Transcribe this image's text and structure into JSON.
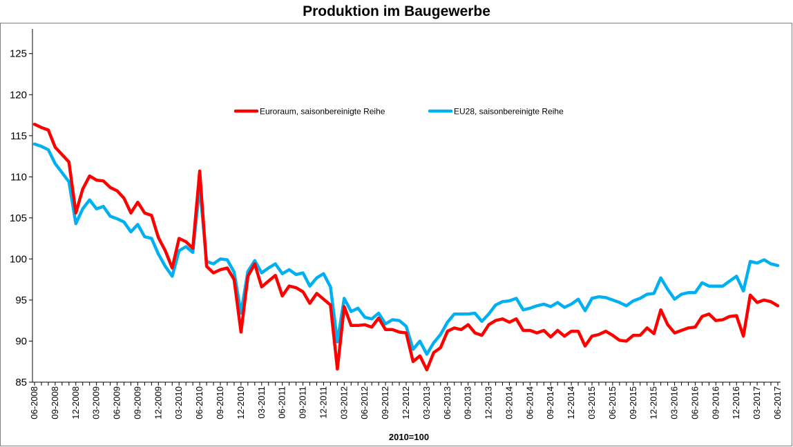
{
  "chart_data": {
    "type": "line",
    "title": "Produktion im Baugewerbe",
    "xlabel": "2010=100",
    "ylabel": "",
    "ylim": [
      85,
      128
    ],
    "yticks": [
      85,
      90,
      95,
      100,
      105,
      110,
      115,
      120,
      125
    ],
    "grid": false,
    "legend_position": "top-center",
    "x": [
      "06-2008",
      "07-2008",
      "08-2008",
      "09-2008",
      "10-2008",
      "11-2008",
      "12-2008",
      "01-2009",
      "02-2009",
      "03-2009",
      "04-2009",
      "05-2009",
      "06-2009",
      "07-2009",
      "08-2009",
      "09-2009",
      "10-2009",
      "11-2009",
      "12-2009",
      "01-2010",
      "02-2010",
      "03-2010",
      "04-2010",
      "05-2010",
      "06-2010",
      "07-2010",
      "08-2010",
      "09-2010",
      "10-2010",
      "11-2010",
      "12-2010",
      "01-2011",
      "02-2011",
      "03-2011",
      "04-2011",
      "05-2011",
      "06-2011",
      "07-2011",
      "08-2011",
      "09-2011",
      "10-2011",
      "11-2011",
      "12-2011",
      "01-2012",
      "02-2012",
      "03-2012",
      "04-2012",
      "05-2012",
      "06-2012",
      "07-2012",
      "08-2012",
      "09-2012",
      "10-2012",
      "11-2012",
      "12-2012",
      "01-2013",
      "02-2013",
      "03-2013",
      "04-2013",
      "05-2013",
      "06-2013",
      "07-2013",
      "08-2013",
      "09-2013",
      "10-2013",
      "11-2013",
      "12-2013",
      "01-2014",
      "02-2014",
      "03-2014",
      "04-2014",
      "05-2014",
      "06-2014",
      "07-2014",
      "08-2014",
      "09-2014",
      "10-2014",
      "11-2014",
      "12-2014",
      "01-2015",
      "02-2015",
      "03-2015",
      "04-2015",
      "05-2015",
      "06-2015",
      "07-2015",
      "08-2015",
      "09-2015",
      "10-2015",
      "11-2015",
      "12-2015",
      "01-2016",
      "02-2016",
      "03-2016",
      "04-2016",
      "05-2016",
      "06-2016",
      "07-2016",
      "08-2016",
      "09-2016",
      "10-2016",
      "11-2016",
      "12-2016",
      "01-2017",
      "02-2017",
      "03-2017",
      "04-2017",
      "05-2017",
      "06-2017"
    ],
    "tick_labels": [
      "06-2008",
      "09-2008",
      "12-2008",
      "03-2009",
      "06-2009",
      "09-2009",
      "12-2009",
      "03-2010",
      "06-2010",
      "09-2010",
      "12-2010",
      "03-2011",
      "06-2011",
      "09-2011",
      "12-2011",
      "03-2012",
      "06-2012",
      "09-2012",
      "12-2012",
      "03-2013",
      "06-2013",
      "09-2013",
      "12-2013",
      "03-2014",
      "06-2014",
      "09-2014",
      "12-2014",
      "03-2015",
      "06-2015",
      "09-2015",
      "12-2015",
      "03-2016",
      "06-2016",
      "09-2016",
      "12-2016",
      "03-2017",
      "06-2017"
    ],
    "series": [
      {
        "name": "Euroraum, saisonbereinigte Reihe",
        "color": "#ff0000",
        "values": [
          116.4,
          116.0,
          115.7,
          113.6,
          112.7,
          111.8,
          105.6,
          108.5,
          110.1,
          109.6,
          109.5,
          108.7,
          108.3,
          107.4,
          105.6,
          106.9,
          105.6,
          105.3,
          102.6,
          101.0,
          98.9,
          102.5,
          102.1,
          101.3,
          110.7,
          99.1,
          98.3,
          98.7,
          98.9,
          97.5,
          91.1,
          97.9,
          99.4,
          96.6,
          97.3,
          98.0,
          95.5,
          96.7,
          96.5,
          96.0,
          94.6,
          95.8,
          95.1,
          94.4,
          86.6,
          94.2,
          91.9,
          91.9,
          92.0,
          91.7,
          92.8,
          91.4,
          91.4,
          91.1,
          91.0,
          87.5,
          88.2,
          86.5,
          88.6,
          89.2,
          91.2,
          91.6,
          91.4,
          92.0,
          91.0,
          90.7,
          92.0,
          92.5,
          92.7,
          92.3,
          92.7,
          91.3,
          91.3,
          91.0,
          91.3,
          90.5,
          91.3,
          90.6,
          91.2,
          91.2,
          89.4,
          90.6,
          90.8,
          91.2,
          90.7,
          90.1,
          90.0,
          90.7,
          90.7,
          91.6,
          90.9,
          93.8,
          92.0,
          91.0,
          91.3,
          91.6,
          91.7,
          93.0,
          93.3,
          92.5,
          92.6,
          93.0,
          93.1,
          90.6,
          95.6,
          94.7,
          95.0,
          94.8,
          94.3
        ]
      },
      {
        "name": "EU28, saisonbereinigte Reihe",
        "color": "#00b0f0",
        "values": [
          114.0,
          113.7,
          113.3,
          111.6,
          110.5,
          109.4,
          104.3,
          106.1,
          107.2,
          106.1,
          106.4,
          105.2,
          104.9,
          104.5,
          103.3,
          104.2,
          102.7,
          102.5,
          100.6,
          99.1,
          97.9,
          101.0,
          101.5,
          100.8,
          108.8,
          99.7,
          99.4,
          100.0,
          99.9,
          98.4,
          93.4,
          98.5,
          99.8,
          98.3,
          98.9,
          99.4,
          98.2,
          98.7,
          98.1,
          98.3,
          96.7,
          97.7,
          98.2,
          96.6,
          89.9,
          95.2,
          93.6,
          94.0,
          92.9,
          92.7,
          93.4,
          92.1,
          92.6,
          92.5,
          91.8,
          89.0,
          90.0,
          88.4,
          89.8,
          90.8,
          92.3,
          93.3,
          93.3,
          93.3,
          93.4,
          92.4,
          93.3,
          94.4,
          94.8,
          94.9,
          95.2,
          93.8,
          94.0,
          94.3,
          94.5,
          94.2,
          94.7,
          94.1,
          94.5,
          95.1,
          93.7,
          95.2,
          95.4,
          95.3,
          95.0,
          94.7,
          94.3,
          94.9,
          95.2,
          95.7,
          95.8,
          97.7,
          96.3,
          95.1,
          95.7,
          95.9,
          95.9,
          97.1,
          96.7,
          96.7,
          96.7,
          97.3,
          97.9,
          96.1,
          99.7,
          99.5,
          99.9,
          99.4,
          99.2
        ]
      }
    ]
  }
}
